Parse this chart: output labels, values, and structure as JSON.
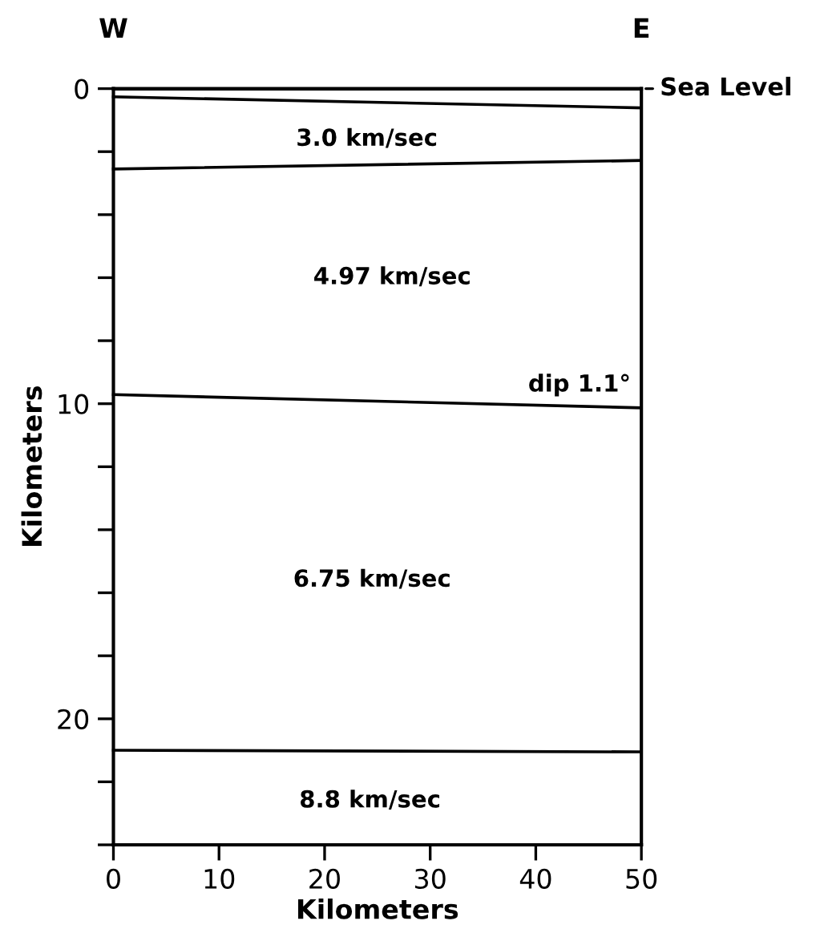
{
  "chart_data": {
    "type": "line",
    "xlabel": "Kilometers",
    "ylabel": "Kilometers",
    "x": [
      0,
      50
    ],
    "series": [
      {
        "color": "#000000",
        "values": [
          0.26,
          0.61
        ]
      },
      {
        "color": "#000000",
        "values": [
          2.55,
          2.28
        ]
      },
      {
        "color": "#000000",
        "values": [
          9.71,
          10.13
        ]
      },
      {
        "color": "#000000",
        "values": [
          21.0,
          21.05
        ]
      }
    ],
    "xlim": [
      0,
      50
    ],
    "xticks": [
      0,
      10,
      20,
      30,
      40,
      50
    ],
    "ylim": [
      24,
      0
    ],
    "yticks": [
      0,
      {
        "value": 2,
        "label": null
      },
      {
        "value": 4,
        "label": null
      },
      {
        "value": 6,
        "label": null
      },
      {
        "value": 8,
        "label": null
      },
      10,
      {
        "value": 12,
        "label": null
      },
      {
        "value": 14,
        "label": null
      },
      {
        "value": 16,
        "label": null
      },
      {
        "value": 18,
        "label": null
      },
      20,
      {
        "value": 22,
        "label": null
      },
      {
        "value": 24,
        "label": null
      }
    ],
    "ref_lines": [
      {
        "axis": "y",
        "value": 0,
        "label": "Sea Level",
        "color": "#000000"
      }
    ],
    "annotations": [
      "W",
      "E",
      "3.0 km/sec",
      "4.97 km/sec",
      "dip 1.1°",
      "6.75 km/sec",
      "8.8 km/sec"
    ],
    "grid": false,
    "legend": false,
    "marker": "none",
    "line_style": "solid"
  }
}
